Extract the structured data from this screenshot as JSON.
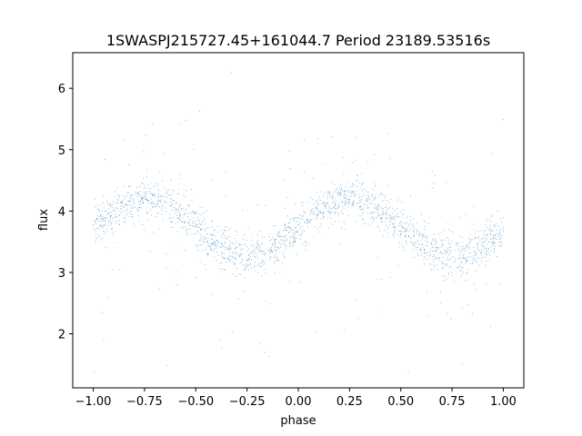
{
  "chart_data": {
    "type": "scatter",
    "title": "1SWASPJ215727.45+161044.7 Period 23189.53516s",
    "xlabel": "phase",
    "ylabel": "flux",
    "xlim": [
      -1.1,
      1.1
    ],
    "ylim": [
      1.12,
      6.58
    ],
    "xticks": [
      -1.0,
      -0.75,
      -0.5,
      -0.25,
      0.0,
      0.25,
      0.5,
      0.75,
      1.0
    ],
    "xtick_labels": [
      "−1.00",
      "−0.75",
      "−0.50",
      "−0.25",
      "0.00",
      "0.25",
      "0.50",
      "0.75",
      "1.00"
    ],
    "yticks": [
      2,
      3,
      4,
      5,
      6
    ],
    "ytick_labels": [
      "2",
      "3",
      "4",
      "5",
      "6"
    ],
    "grid": false,
    "marker_color": "#1f77b4",
    "series": [
      {
        "description_of_trend": "sinusoidal folded light curve, two cycles across phase -1 to 1",
        "x_range": [
          -1.0,
          1.0
        ],
        "trend_points": {
          "x": [
            -1.0,
            -0.875,
            -0.75,
            -0.7,
            -0.625,
            -0.5,
            -0.375,
            -0.25,
            -0.2,
            -0.125,
            0.0,
            0.125,
            0.25,
            0.3,
            0.375,
            0.5,
            0.625,
            0.75,
            0.8,
            0.875,
            1.0
          ],
          "y": [
            3.75,
            4.05,
            4.22,
            4.22,
            4.1,
            3.75,
            3.4,
            3.25,
            3.28,
            3.4,
            3.75,
            4.1,
            4.25,
            4.22,
            4.1,
            3.75,
            3.4,
            3.28,
            3.28,
            3.4,
            3.7
          ]
        },
        "band_half_width": 0.42,
        "outlier_y_range": [
          1.35,
          6.35
        ]
      }
    ]
  }
}
